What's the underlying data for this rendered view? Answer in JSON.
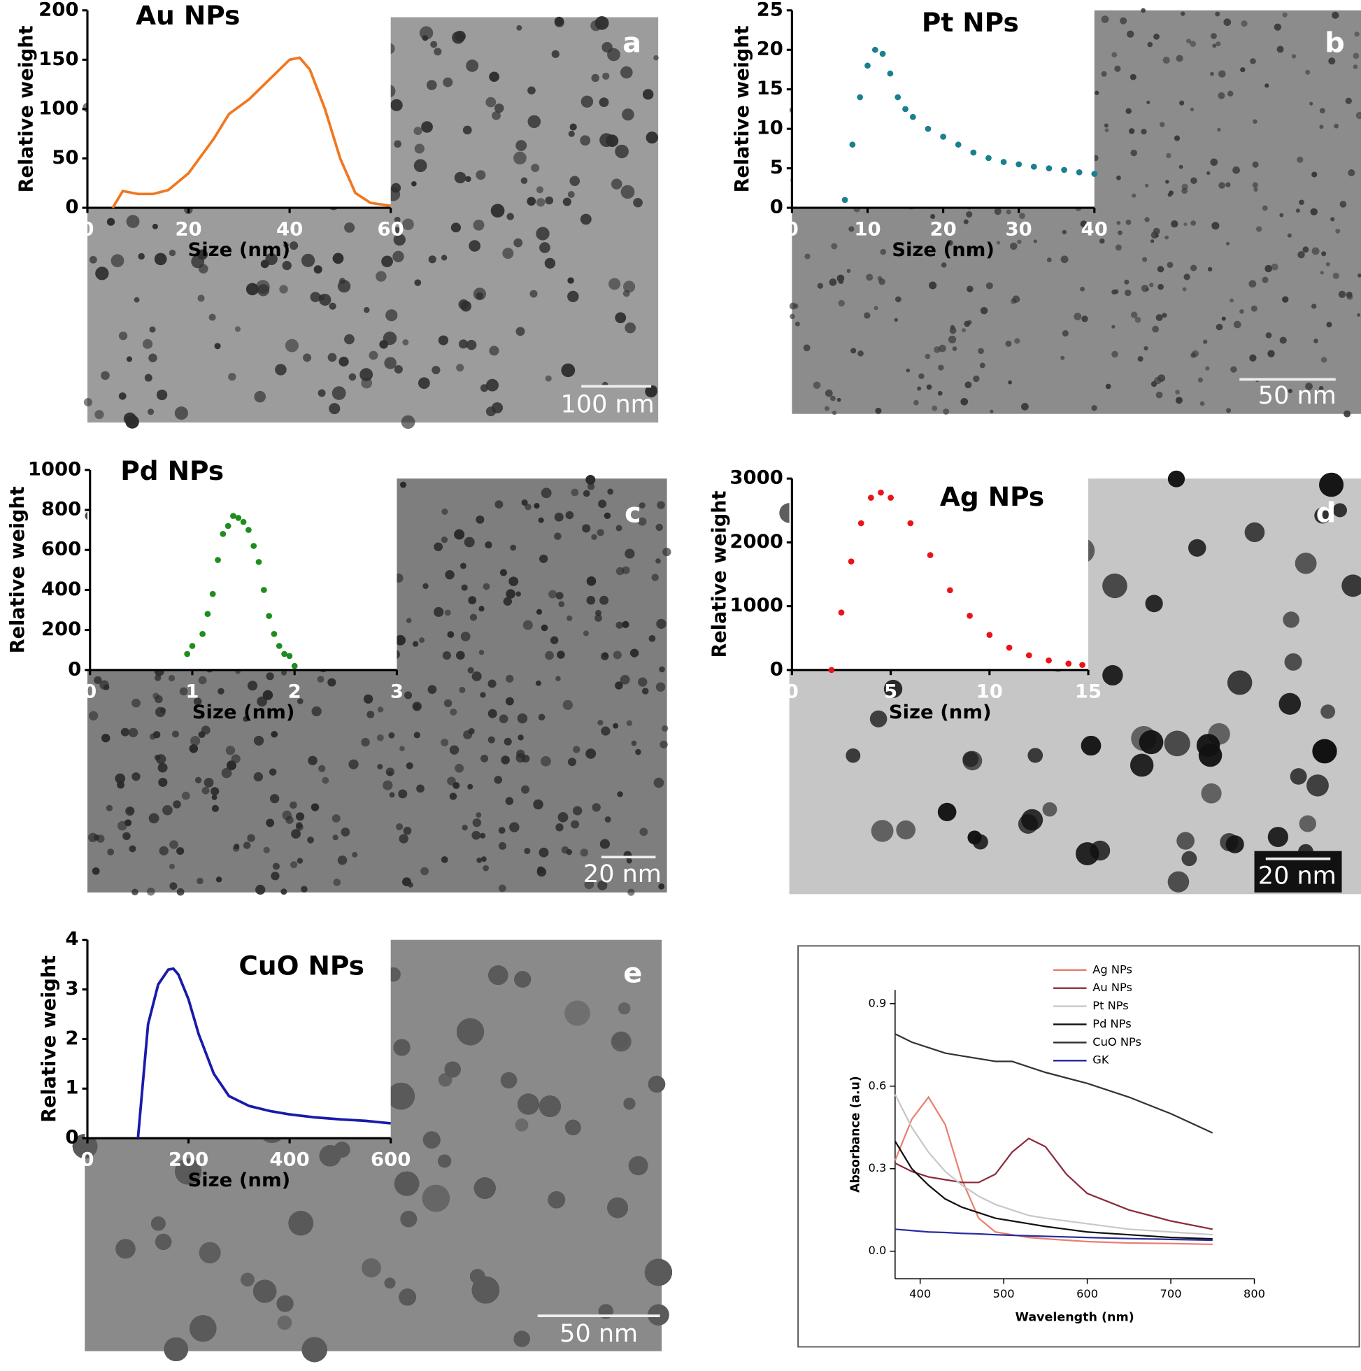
{
  "chart_data": [
    {
      "type": "line",
      "title": "Au NPs",
      "panel_label": "a",
      "scale_bar": "100 nm",
      "x_label": "Size (nm)",
      "y_label": "Relative weight",
      "color": "#f07820",
      "x": [
        5,
        7,
        10,
        13,
        16,
        20,
        25,
        28,
        32,
        36,
        40,
        42,
        44,
        47,
        50,
        53,
        56,
        60
      ],
      "values": [
        0,
        17,
        14,
        14,
        18,
        35,
        70,
        95,
        110,
        130,
        150,
        152,
        140,
        100,
        50,
        15,
        5,
        2
      ],
      "xlim": [
        0,
        60
      ],
      "xticks": [
        0,
        20,
        40,
        60
      ],
      "ylim": [
        0,
        200
      ],
      "yticks": [
        0,
        50,
        100,
        150,
        200
      ]
    },
    {
      "type": "scatter",
      "title": "Pt NPs",
      "panel_label": "b",
      "scale_bar": "50 nm",
      "x_label": "Size (nm)",
      "y_label": "Relative weight",
      "color": "#1a7f8e",
      "x": [
        7,
        8,
        9,
        10,
        11,
        12,
        13,
        14,
        15,
        16,
        18,
        20,
        22,
        24,
        26,
        28,
        30,
        32,
        34,
        36,
        38,
        40
      ],
      "values": [
        1,
        8,
        14,
        18,
        20,
        19.5,
        17,
        14,
        12.5,
        11.5,
        10,
        9,
        8,
        7,
        6.3,
        5.8,
        5.5,
        5.2,
        5,
        4.8,
        4.5,
        4.3
      ],
      "xlim": [
        0,
        40
      ],
      "xticks": [
        0,
        10,
        20,
        30,
        40
      ],
      "ylim": [
        0,
        25
      ],
      "yticks": [
        0,
        5,
        10,
        15,
        20,
        25
      ]
    },
    {
      "type": "scatter",
      "title": "Pd NPs",
      "panel_label": "c",
      "scale_bar": "20 nm",
      "x_label": "Size (nm)",
      "y_label": "Relative weight",
      "color": "#1e8c1e",
      "x": [
        0.95,
        1.0,
        1.1,
        1.15,
        1.2,
        1.25,
        1.3,
        1.35,
        1.4,
        1.45,
        1.5,
        1.55,
        1.6,
        1.65,
        1.7,
        1.75,
        1.8,
        1.85,
        1.9,
        1.95,
        2.0
      ],
      "values": [
        80,
        120,
        180,
        280,
        380,
        550,
        680,
        720,
        770,
        760,
        740,
        700,
        620,
        540,
        400,
        270,
        180,
        120,
        80,
        70,
        20
      ],
      "xlim": [
        0,
        3
      ],
      "xticks": [
        0,
        1,
        2,
        3
      ],
      "ylim": [
        0,
        1000
      ],
      "yticks": [
        0,
        200,
        400,
        600,
        800,
        1000
      ]
    },
    {
      "type": "scatter",
      "title": "Ag NPs",
      "panel_label": "d",
      "scale_bar": "20 nm",
      "x_label": "Size (nm)",
      "y_label": "Relative weight",
      "color": "#e8141a",
      "x": [
        2,
        2.5,
        3,
        3.5,
        4,
        4.5,
        5,
        6,
        7,
        8,
        9,
        10,
        11,
        12,
        13,
        14,
        14.7
      ],
      "values": [
        0,
        900,
        1700,
        2300,
        2700,
        2780,
        2700,
        2300,
        1800,
        1250,
        850,
        550,
        350,
        230,
        150,
        100,
        80
      ],
      "xlim": [
        0,
        15
      ],
      "xticks": [
        0,
        5,
        10,
        15
      ],
      "ylim": [
        0,
        3000
      ],
      "yticks": [
        0,
        1000,
        2000,
        3000
      ]
    },
    {
      "type": "line",
      "title": "CuO NPs",
      "panel_label": "e",
      "scale_bar": "50 nm",
      "x_label": "Size (nm)",
      "y_label": "Relative weight",
      "color": "#1a1aaa",
      "x": [
        100,
        120,
        140,
        160,
        170,
        180,
        200,
        220,
        250,
        280,
        320,
        360,
        400,
        450,
        500,
        550,
        600
      ],
      "values": [
        0,
        2.3,
        3.1,
        3.4,
        3.42,
        3.3,
        2.8,
        2.1,
        1.3,
        0.85,
        0.65,
        0.55,
        0.48,
        0.42,
        0.38,
        0.35,
        0.3
      ],
      "xlim": [
        0,
        600
      ],
      "xticks": [
        0,
        200,
        400,
        600
      ],
      "ylim": [
        0,
        4
      ],
      "yticks": [
        0,
        1,
        2,
        3,
        4
      ]
    },
    {
      "type": "line",
      "x_label": "Wavelength (nm)",
      "y_label": "Absorbance (a.u)",
      "legend": "top",
      "x": [
        370,
        390,
        410,
        430,
        450,
        470,
        490,
        510,
        530,
        550,
        575,
        600,
        650,
        700,
        750
      ],
      "series": [
        {
          "name": "Ag NPs",
          "color": "#e8806e",
          "values": [
            0.33,
            0.48,
            0.56,
            0.46,
            0.26,
            0.12,
            0.07,
            0.06,
            0.05,
            0.045,
            0.04,
            0.035,
            0.03,
            0.028,
            0.025
          ]
        },
        {
          "name": "Au NPs",
          "color": "#8b2a3a",
          "values": [
            0.32,
            0.29,
            0.27,
            0.26,
            0.25,
            0.25,
            0.28,
            0.36,
            0.41,
            0.38,
            0.28,
            0.21,
            0.15,
            0.11,
            0.08
          ]
        },
        {
          "name": "Pt NPs",
          "color": "#c8c8c8",
          "values": [
            0.57,
            0.45,
            0.36,
            0.29,
            0.24,
            0.2,
            0.17,
            0.15,
            0.13,
            0.12,
            0.11,
            0.1,
            0.08,
            0.07,
            0.06
          ]
        },
        {
          "name": "Pd NPs",
          "color": "#111111",
          "values": [
            0.4,
            0.3,
            0.24,
            0.19,
            0.16,
            0.14,
            0.12,
            0.11,
            0.1,
            0.09,
            0.08,
            0.07,
            0.06,
            0.05,
            0.045
          ]
        },
        {
          "name": "CuO NPs",
          "color": "#333333",
          "values": [
            0.79,
            0.76,
            0.74,
            0.72,
            0.71,
            0.7,
            0.69,
            0.69,
            0.67,
            0.65,
            0.63,
            0.61,
            0.56,
            0.5,
            0.43
          ]
        },
        {
          "name": "GK",
          "color": "#2a2aa0",
          "values": [
            0.08,
            0.075,
            0.07,
            0.068,
            0.065,
            0.063,
            0.06,
            0.058,
            0.056,
            0.054,
            0.052,
            0.05,
            0.046,
            0.043,
            0.04
          ]
        }
      ],
      "xlim": [
        370,
        800
      ],
      "xticks": [
        400,
        500,
        600,
        700,
        800
      ],
      "ylim": [
        -0.1,
        0.95
      ],
      "yticks": [
        {
          "value": 0,
          "label": "0.0"
        },
        0.3,
        0.6,
        0.9
      ]
    }
  ]
}
